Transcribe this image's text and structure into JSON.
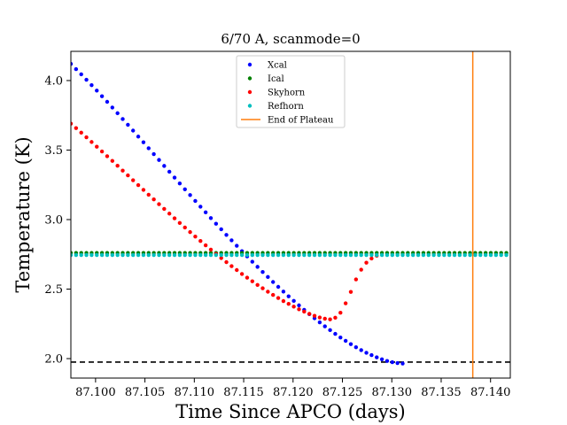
{
  "chart_data": {
    "type": "scatter",
    "title": "6/70 A, scanmode=0",
    "xlabel": "Time Since APCO (days)",
    "ylabel": "Temperature (K)",
    "xlim": [
      87.0975,
      87.142
    ],
    "ylim": [
      1.86,
      4.21
    ],
    "xticks": [
      87.1,
      87.105,
      87.11,
      87.115,
      87.12,
      87.125,
      87.13,
      87.135,
      87.14
    ],
    "xtick_labels": [
      "87.100",
      "87.105",
      "87.110",
      "87.115",
      "87.120",
      "87.125",
      "87.130",
      "87.135",
      "87.140"
    ],
    "yticks": [
      2.0,
      2.5,
      3.0,
      3.5,
      4.0
    ],
    "ytick_labels": [
      "2.0",
      "2.5",
      "3.0",
      "3.5",
      "4.0"
    ],
    "grid": false,
    "legend_position": "top-center",
    "legend": [
      "Xcal",
      "Ical",
      "Skyhorn",
      "Refhorn",
      "End of Plateau"
    ],
    "x_start": 87.0975,
    "x_step": 0.000525,
    "series": [
      {
        "name": "Xcal",
        "color": "#0000ff",
        "values": [
          4.12,
          4.082,
          4.045,
          4.006,
          3.967,
          3.928,
          3.887,
          3.847,
          3.806,
          3.765,
          3.723,
          3.682,
          3.64,
          3.597,
          3.556,
          3.513,
          3.471,
          3.429,
          3.386,
          3.344,
          3.302,
          3.26,
          3.218,
          3.176,
          3.134,
          3.093,
          3.052,
          3.011,
          2.97,
          2.93,
          2.89,
          2.851,
          2.812,
          2.773,
          2.735,
          2.697,
          2.66,
          2.623,
          2.587,
          2.551,
          2.516,
          2.482,
          2.448,
          2.415,
          2.383,
          2.351,
          2.32,
          2.29,
          2.261,
          2.232,
          2.205,
          2.178,
          2.152,
          2.128,
          2.104,
          2.082,
          2.061,
          2.042,
          2.025,
          2.009,
          1.995,
          1.983,
          1.974,
          1.968,
          1.965
        ]
      },
      {
        "name": "Ical",
        "color": "#008000",
        "constant": 2.76
      },
      {
        "name": "Skyhorn",
        "color": "#ff0000",
        "values": [
          3.69,
          3.658,
          3.625,
          3.592,
          3.558,
          3.524,
          3.49,
          3.456,
          3.422,
          3.387,
          3.352,
          3.318,
          3.283,
          3.248,
          3.214,
          3.179,
          3.145,
          3.111,
          3.077,
          3.043,
          3.009,
          2.976,
          2.943,
          2.91,
          2.878,
          2.846,
          2.815,
          2.784,
          2.753,
          2.723,
          2.694,
          2.665,
          2.637,
          2.609,
          2.582,
          2.556,
          2.53,
          2.506,
          2.481,
          2.458,
          2.436,
          2.414,
          2.394,
          2.374,
          2.355,
          2.338,
          2.322,
          2.308,
          2.296,
          2.287,
          2.282,
          2.294,
          2.33,
          2.398,
          2.48,
          2.57,
          2.64,
          2.69,
          2.72,
          2.74
        ]
      },
      {
        "name": "Refhorn",
        "color": "#00bfbf",
        "constant": 2.745
      }
    ],
    "vline": {
      "name": "End of Plateau",
      "x": 87.1382,
      "color": "#ff7f0e"
    },
    "hline": {
      "y": 1.975,
      "style": "dashed",
      "color": "#000000"
    }
  }
}
